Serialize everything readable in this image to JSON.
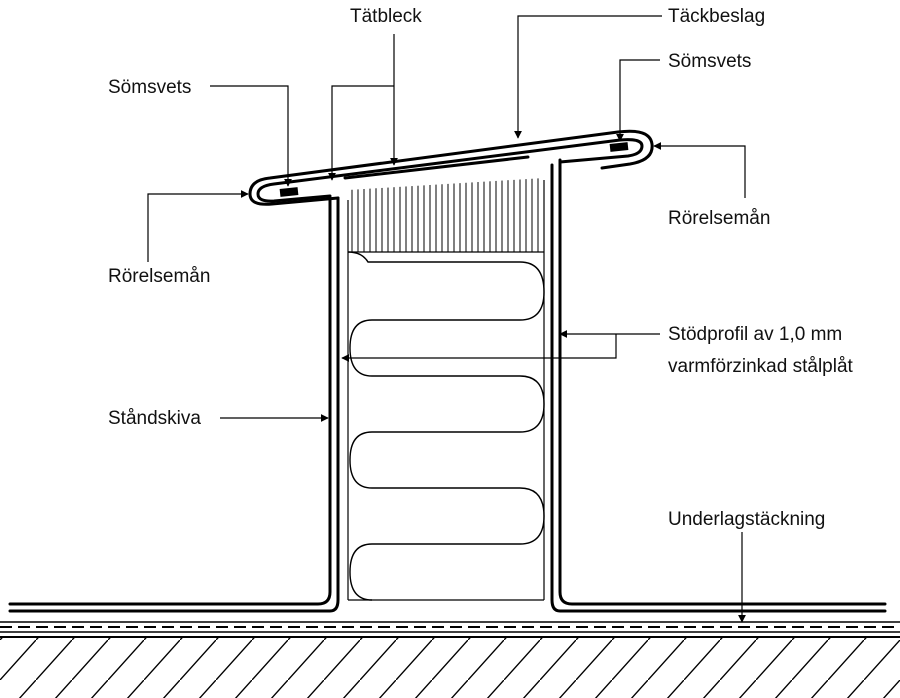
{
  "labels": {
    "tatbleck": "Tätbleck",
    "tackbeslag": "Täckbeslag",
    "somsvets_left": "Sömsvets",
    "somsvets_right": "Sömsvets",
    "rorelseman_left": "Rörelsemån",
    "rorelseman_right": "Rörelsemån",
    "stodprofil_line1": "Stödprofil av 1,0 mm",
    "stodprofil_line2": "varmförzinkad stålplåt",
    "standskiva": "Ståndskiva",
    "underlagstackning": "Underlagstäckning"
  },
  "colors": {
    "ink": "#000000",
    "background": "#ffffff"
  }
}
